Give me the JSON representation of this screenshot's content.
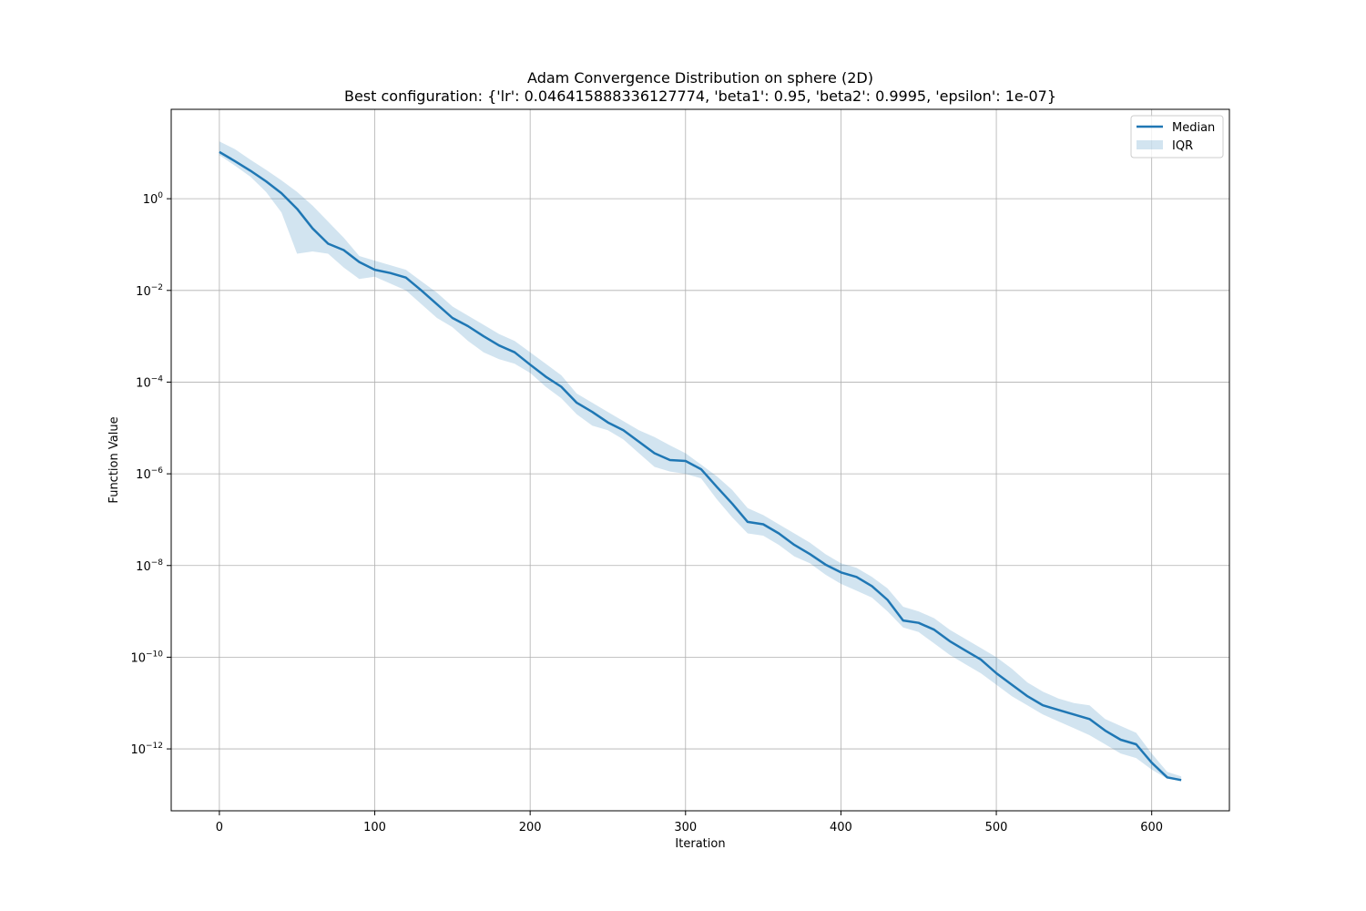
{
  "chart_data": {
    "type": "line",
    "title": "Adam Convergence Distribution on sphere (2D)",
    "subtitle": "Best configuration: {'lr': 0.046415888336127774, 'beta1': 0.95, 'beta2': 0.9995, 'epsilon': 1e-07}",
    "xlabel": "Iteration",
    "ylabel": "Function Value",
    "yscale": "log",
    "grid": true,
    "legend_position": "top-right",
    "xlim": [
      -31,
      650
    ],
    "ylim_log10": [
      -13.35,
      1.95
    ],
    "x_ticks": [
      0,
      100,
      200,
      300,
      400,
      500,
      600
    ],
    "y_ticks": [
      {
        "exp": 0,
        "base": "10",
        "sup": "0"
      },
      {
        "exp": -2,
        "base": "10",
        "sup": "−2"
      },
      {
        "exp": -4,
        "base": "10",
        "sup": "−4"
      },
      {
        "exp": -6,
        "base": "10",
        "sup": "−6"
      },
      {
        "exp": -8,
        "base": "10",
        "sup": "−8"
      },
      {
        "exp": -10,
        "base": "10",
        "sup": "−10"
      },
      {
        "exp": -12,
        "base": "10",
        "sup": "−12"
      }
    ],
    "series": [
      {
        "name": "Median",
        "color": "#1f77b4",
        "x": [
          0,
          10,
          20,
          30,
          40,
          50,
          60,
          70,
          80,
          90,
          100,
          110,
          120,
          130,
          140,
          150,
          160,
          170,
          180,
          190,
          200,
          210,
          220,
          230,
          240,
          250,
          260,
          270,
          280,
          290,
          300,
          310,
          320,
          330,
          340,
          350,
          360,
          370,
          380,
          390,
          400,
          410,
          420,
          430,
          440,
          450,
          460,
          470,
          480,
          490,
          500,
          510,
          520,
          530,
          540,
          550,
          560,
          570,
          580,
          590,
          600,
          610,
          619
        ],
        "log10_values": [
          1.02,
          0.82,
          0.61,
          0.38,
          0.12,
          -0.22,
          -0.65,
          -0.98,
          -1.12,
          -1.38,
          -1.55,
          -1.62,
          -1.72,
          -2.0,
          -2.3,
          -2.6,
          -2.78,
          -3.0,
          -3.2,
          -3.35,
          -3.62,
          -3.88,
          -4.1,
          -4.45,
          -4.65,
          -4.88,
          -5.05,
          -5.3,
          -5.55,
          -5.7,
          -5.72,
          -5.9,
          -6.28,
          -6.65,
          -7.05,
          -7.1,
          -7.3,
          -7.55,
          -7.75,
          -7.98,
          -8.15,
          -8.25,
          -8.45,
          -8.75,
          -9.2,
          -9.25,
          -9.4,
          -9.65,
          -9.85,
          -10.05,
          -10.35,
          -10.6,
          -10.85,
          -11.05,
          -11.15,
          -11.25,
          -11.35,
          -11.6,
          -11.8,
          -11.9,
          -12.3,
          -12.62,
          -12.68
        ]
      }
    ],
    "bands": [
      {
        "name": "IQR",
        "color": "#1f77b4",
        "opacity": 0.2,
        "x": [
          0,
          10,
          20,
          30,
          40,
          50,
          60,
          70,
          80,
          90,
          100,
          110,
          120,
          130,
          140,
          150,
          160,
          170,
          180,
          190,
          200,
          210,
          220,
          230,
          240,
          250,
          260,
          270,
          280,
          290,
          300,
          310,
          320,
          330,
          340,
          350,
          360,
          370,
          380,
          390,
          400,
          410,
          420,
          430,
          440,
          450,
          460,
          470,
          480,
          490,
          500,
          510,
          520,
          530,
          540,
          550,
          560,
          570,
          580,
          590,
          600,
          610,
          619
        ],
        "log10_lower": [
          0.95,
          0.72,
          0.48,
          0.15,
          -0.3,
          -1.2,
          -1.15,
          -1.2,
          -1.5,
          -1.75,
          -1.7,
          -1.85,
          -2.0,
          -2.3,
          -2.6,
          -2.8,
          -3.1,
          -3.35,
          -3.5,
          -3.6,
          -3.8,
          -4.1,
          -4.35,
          -4.7,
          -4.95,
          -5.05,
          -5.25,
          -5.55,
          -5.85,
          -5.95,
          -6.0,
          -6.1,
          -6.55,
          -6.95,
          -7.3,
          -7.35,
          -7.55,
          -7.8,
          -7.95,
          -8.2,
          -8.4,
          -8.55,
          -8.7,
          -9.0,
          -9.35,
          -9.45,
          -9.7,
          -9.95,
          -10.15,
          -10.35,
          -10.6,
          -10.85,
          -11.05,
          -11.25,
          -11.4,
          -11.55,
          -11.7,
          -11.9,
          -12.1,
          -12.2,
          -12.45,
          -12.65,
          -12.7
        ],
        "log10_upper": [
          1.25,
          1.08,
          0.85,
          0.63,
          0.4,
          0.15,
          -0.15,
          -0.5,
          -0.85,
          -1.25,
          -1.35,
          -1.45,
          -1.55,
          -1.8,
          -2.05,
          -2.35,
          -2.55,
          -2.75,
          -2.95,
          -3.1,
          -3.35,
          -3.6,
          -3.85,
          -4.25,
          -4.45,
          -4.65,
          -4.85,
          -5.05,
          -5.2,
          -5.38,
          -5.55,
          -5.8,
          -6.05,
          -6.35,
          -6.75,
          -6.9,
          -7.1,
          -7.3,
          -7.5,
          -7.75,
          -7.95,
          -8.05,
          -8.25,
          -8.5,
          -8.9,
          -9.0,
          -9.15,
          -9.4,
          -9.6,
          -9.8,
          -10.0,
          -10.25,
          -10.55,
          -10.75,
          -10.9,
          -11.0,
          -11.05,
          -11.35,
          -11.5,
          -11.65,
          -12.1,
          -12.5,
          -12.6
        ]
      }
    ],
    "legend": [
      {
        "label": "Median",
        "kind": "line"
      },
      {
        "label": "IQR",
        "kind": "patch"
      }
    ]
  }
}
